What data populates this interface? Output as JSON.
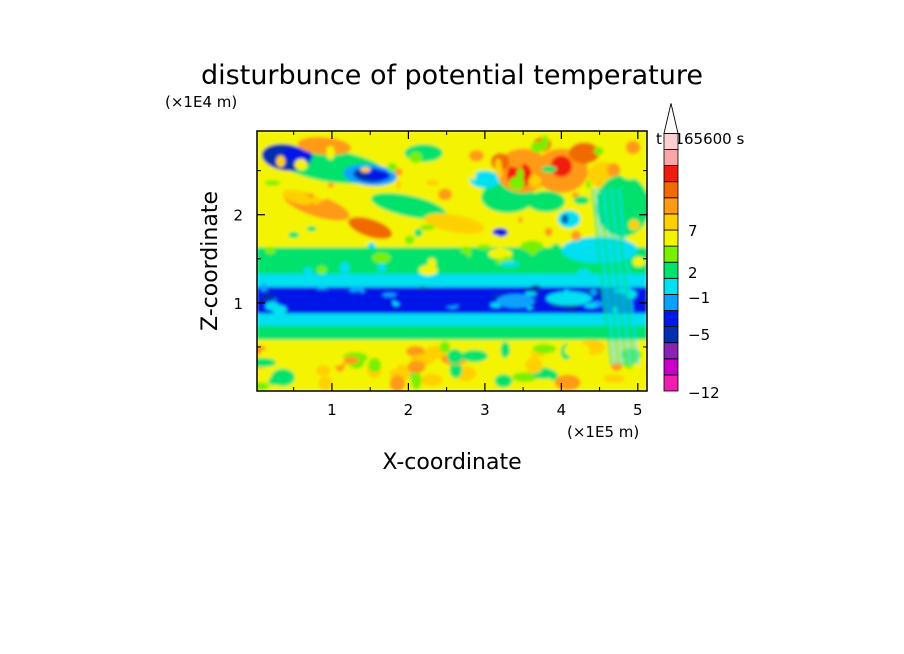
{
  "chart_data": {
    "type": "heatmap",
    "title": "disturbunce of potential temperature",
    "xlabel": "X-coordinate",
    "ylabel": "Z-coordinate",
    "x_unit": "(×1E5 m)",
    "y_unit": "(×1E4 m)",
    "time_label": "t=165600 s",
    "xlim": [
      0.02,
      5.12
    ],
    "ylim": [
      0,
      2.95
    ],
    "x_ticks": [
      "1",
      "2",
      "3",
      "4",
      "5"
    ],
    "y_ticks": [
      "1",
      "2"
    ],
    "colorbar": {
      "labels": [
        "7",
        "2",
        "−1",
        "−5",
        "−12"
      ],
      "levels": [
        -12,
        -10,
        -8,
        -6,
        -5,
        -3,
        -1,
        0,
        1,
        2,
        3,
        5,
        7,
        9,
        11
      ],
      "colors": [
        "#ee1db0",
        "#c800c8",
        "#8a22b4",
        "#002fb0",
        "#0018e8",
        "#0aa0ff",
        "#00e0f0",
        "#00e26c",
        "#78f000",
        "#f4f400",
        "#ffd000",
        "#ff9a14",
        "#f06a00",
        "#f01c10",
        "#f8a6a6",
        "#fcd0d0"
      ]
    },
    "field_bands": [
      {
        "z_range": [
          0,
          0.55
        ],
        "value_range": [
          0,
          3
        ],
        "description_colors": [
          "yellow",
          "green",
          "orange"
        ]
      },
      {
        "z_range": [
          0.6,
          0.85
        ],
        "value_range": [
          -3,
          0
        ]
      },
      {
        "z_range": [
          0.85,
          1.35
        ],
        "value_range": [
          -6,
          -3
        ]
      },
      {
        "z_range": [
          1.35,
          1.7
        ],
        "value_range": [
          -1,
          0
        ]
      },
      {
        "z_range": [
          1.7,
          2.95
        ],
        "value_range": [
          -6,
          9
        ]
      }
    ]
  }
}
